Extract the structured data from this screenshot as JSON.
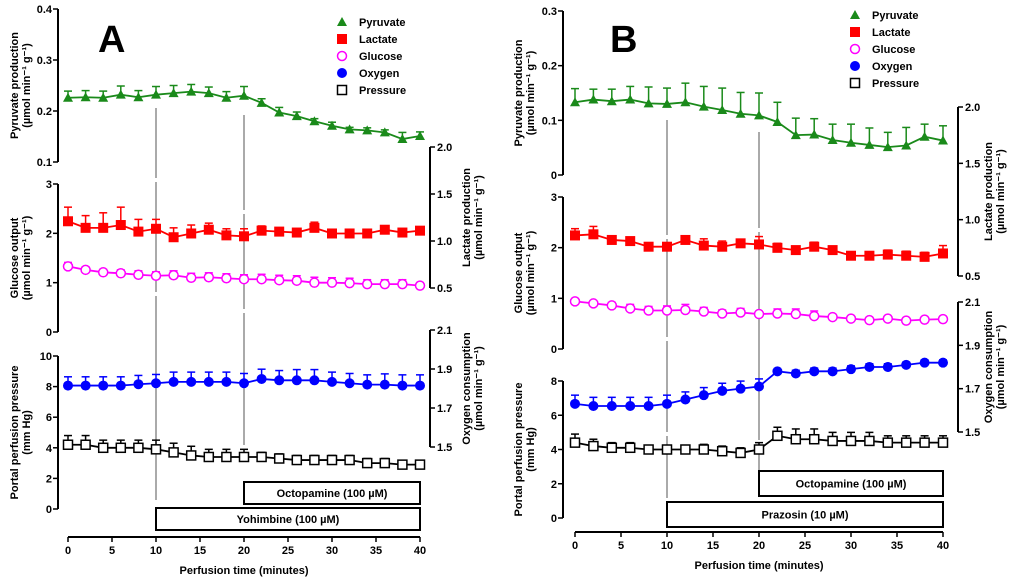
{
  "figure": {
    "legend": [
      {
        "name": "Pyruvate",
        "marker": "triangle",
        "color": "#1a8a1a"
      },
      {
        "name": "Lactate",
        "marker": "square-filled",
        "color": "#ff0000"
      },
      {
        "name": "Glucose",
        "marker": "circle-open",
        "color": "#ff00ff"
      },
      {
        "name": "Oxygen",
        "marker": "circle-filled",
        "color": "#0000ff"
      },
      {
        "name": "Pressure",
        "marker": "square-open",
        "color": "#000000"
      }
    ]
  },
  "chart_data": [
    {
      "panel": "A",
      "type": "line",
      "xlabel": "Perfusion time (minutes)",
      "xlim": [
        0,
        40
      ],
      "xticks": [
        0,
        5,
        10,
        15,
        20,
        25,
        30,
        35,
        40
      ],
      "x": [
        0,
        2,
        4,
        6,
        8,
        10,
        12,
        14,
        16,
        18,
        20,
        22,
        24,
        26,
        28,
        30,
        32,
        34,
        36,
        38,
        40
      ],
      "axes": {
        "pyruvate": {
          "label": "Pyruvate production",
          "unit": "(µmol min⁻¹ g⁻¹)",
          "ylim": [
            0.1,
            0.4
          ],
          "ticks": [
            "0.1",
            "0.2",
            "0.3",
            "0.4"
          ],
          "side": "left"
        },
        "glucose": {
          "label": "Glucose output",
          "unit": "(µmol min⁻¹ g⁻¹)",
          "ylim": [
            0,
            3
          ],
          "ticks": [
            "0",
            "1",
            "2",
            "3"
          ],
          "side": "left"
        },
        "lactate": {
          "label": "Lactate production",
          "unit": "(µmol min⁻¹ g⁻¹)",
          "ylim": [
            0.5,
            2.0
          ],
          "ticks": [
            "0.5",
            "1.0",
            "1.5",
            "2.0"
          ],
          "side": "right"
        },
        "pressure": {
          "label": "Portal perfusion pressure",
          "unit": "(mm Hg)",
          "ylim": [
            0,
            10
          ],
          "ticks": [
            "0",
            "2",
            "4",
            "6",
            "8",
            "10"
          ],
          "side": "left"
        },
        "oxygen": {
          "label": "Oxygen consumption",
          "unit": "(µmol min⁻¹ g⁻¹)",
          "ylim": [
            1.5,
            2.1
          ],
          "ticks": [
            "1.5",
            "1.7",
            "1.9",
            "2.1"
          ],
          "side": "right"
        }
      },
      "series": [
        {
          "name": "Pyruvate",
          "axis": "pyruvate",
          "values": [
            0.226,
            0.227,
            0.226,
            0.232,
            0.227,
            0.232,
            0.235,
            0.238,
            0.235,
            0.226,
            0.23,
            0.216,
            0.197,
            0.19,
            0.18,
            0.171,
            0.164,
            0.162,
            0.158,
            0.145,
            0.151
          ],
          "err": [
            0.013,
            0.013,
            0.013,
            0.017,
            0.013,
            0.016,
            0.015,
            0.014,
            0.012,
            0.012,
            0.018,
            0.008,
            0.01,
            0.008,
            0.005,
            0.007,
            0.004,
            0.005,
            0.005,
            0.013,
            0.008
          ]
        },
        {
          "name": "Lactate",
          "axis": "lactate",
          "values": [
            1.21,
            1.14,
            1.14,
            1.17,
            1.1,
            1.13,
            1.04,
            1.08,
            1.12,
            1.06,
            1.05,
            1.11,
            1.1,
            1.09,
            1.14,
            1.08,
            1.08,
            1.08,
            1.12,
            1.09,
            1.11
          ],
          "err": [
            0.15,
            0.13,
            0.16,
            0.19,
            0.13,
            0.1,
            0.1,
            0.09,
            0.07,
            0.07,
            0.08,
            0.05,
            0.0,
            0.0,
            0.06,
            0.0,
            0.0,
            0.0,
            0.0,
            0.0,
            0.0
          ]
        },
        {
          "name": "Glucose",
          "axis": "glucose",
          "values": [
            1.33,
            1.26,
            1.21,
            1.19,
            1.16,
            1.14,
            1.15,
            1.1,
            1.11,
            1.09,
            1.07,
            1.07,
            1.05,
            1.04,
            1.0,
            1.0,
            0.99,
            0.97,
            0.97,
            0.97,
            0.94
          ],
          "err": [
            0.08,
            0.06,
            0.06,
            0.07,
            0.08,
            0.08,
            0.09,
            0.09,
            0.09,
            0.09,
            0.09,
            0.1,
            0.1,
            0.1,
            0.11,
            0.1,
            0.1,
            0.09,
            0.09,
            0.09,
            0.06
          ]
        },
        {
          "name": "Oxygen",
          "axis": "oxygen",
          "values": [
            1.815,
            1.815,
            1.815,
            1.815,
            1.822,
            1.827,
            1.834,
            1.834,
            1.834,
            1.834,
            1.827,
            1.849,
            1.842,
            1.842,
            1.842,
            1.834,
            1.827,
            1.82,
            1.82,
            1.815,
            1.815
          ],
          "err": [
            0.045,
            0.045,
            0.045,
            0.045,
            0.045,
            0.045,
            0.05,
            0.05,
            0.05,
            0.05,
            0.05,
            0.05,
            0.05,
            0.055,
            0.055,
            0.05,
            0.05,
            0.05,
            0.055,
            0.055,
            0.055
          ]
        },
        {
          "name": "Pressure",
          "axis": "pressure",
          "values": [
            4.2,
            4.2,
            4.0,
            4.0,
            4.0,
            3.9,
            3.7,
            3.5,
            3.4,
            3.4,
            3.4,
            3.4,
            3.3,
            3.2,
            3.2,
            3.2,
            3.2,
            3.0,
            3.0,
            2.9,
            2.9
          ],
          "err": [
            0.6,
            0.6,
            0.5,
            0.5,
            0.5,
            0.6,
            0.6,
            0.6,
            0.5,
            0.5,
            0.5,
            0.3,
            0.3,
            0.3,
            0.3,
            0.3,
            0.3,
            0.3,
            0.3,
            0.2,
            0.2
          ]
        }
      ],
      "treatments": [
        {
          "label": "Octopamine (100 µM)",
          "start": 20,
          "end": 40
        },
        {
          "label": "Yohimbine (100 µM)",
          "start": 10,
          "end": 40
        }
      ]
    },
    {
      "panel": "B",
      "type": "line",
      "xlabel": "Perfusion time (minutes)",
      "xlim": [
        0,
        40
      ],
      "xticks": [
        0,
        5,
        10,
        15,
        20,
        25,
        30,
        35,
        40
      ],
      "x": [
        0,
        2,
        4,
        6,
        8,
        10,
        12,
        14,
        16,
        18,
        20,
        22,
        24,
        26,
        28,
        30,
        32,
        34,
        36,
        38,
        40
      ],
      "axes": {
        "pyruvate": {
          "label": "Pyruvate production",
          "unit": "(µmol min⁻¹ g⁻¹)",
          "ylim": [
            0,
            0.3
          ],
          "ticks": [
            "0",
            "0.1",
            "0.2",
            "0.3"
          ],
          "side": "left"
        },
        "glucose": {
          "label": "Glucose output",
          "unit": "(µmol min⁻¹ g⁻¹)",
          "ylim": [
            0,
            3
          ],
          "ticks": [
            "0",
            "1",
            "2",
            "3"
          ],
          "side": "left"
        },
        "lactate": {
          "label": "Lactate production",
          "unit": "(µmol min⁻¹ g⁻¹)",
          "ylim": [
            0.5,
            2.0
          ],
          "ticks": [
            "0.5",
            "1.0",
            "1.5",
            "2.0"
          ],
          "side": "right"
        },
        "pressure": {
          "label": "Portal perfusion pressure",
          "unit": "(mm Hg)",
          "ylim": [
            0,
            8
          ],
          "ticks": [
            "0",
            "2",
            "4",
            "6",
            "8"
          ],
          "side": "left"
        },
        "oxygen": {
          "label": "Oxygen consumption",
          "unit": "(µmol min⁻¹ g⁻¹)",
          "ylim": [
            1.5,
            2.1
          ],
          "ticks": [
            "1.5",
            "1.7",
            "1.9",
            "2.1"
          ],
          "side": "right"
        }
      },
      "series": [
        {
          "name": "Pyruvate",
          "axis": "pyruvate",
          "values": [
            0.133,
            0.138,
            0.135,
            0.138,
            0.131,
            0.13,
            0.133,
            0.125,
            0.119,
            0.112,
            0.109,
            0.097,
            0.073,
            0.074,
            0.064,
            0.059,
            0.055,
            0.051,
            0.054,
            0.07,
            0.063
          ],
          "err": [
            0.025,
            0.019,
            0.022,
            0.024,
            0.03,
            0.029,
            0.035,
            0.037,
            0.04,
            0.039,
            0.041,
            0.036,
            0.031,
            0.029,
            0.029,
            0.034,
            0.031,
            0.027,
            0.033,
            0.023,
            0.027
          ]
        },
        {
          "name": "Lactate",
          "axis": "lactate",
          "values": [
            0.86,
            0.87,
            0.82,
            0.81,
            0.76,
            0.76,
            0.82,
            0.77,
            0.76,
            0.79,
            0.78,
            0.75,
            0.73,
            0.76,
            0.73,
            0.68,
            0.68,
            0.69,
            0.68,
            0.67,
            0.7
          ],
          "err": [
            0.06,
            0.07,
            0.03,
            0.0,
            0.0,
            0.0,
            0.0,
            0.06,
            0.05,
            0.03,
            0.07,
            0.04,
            0.0,
            0.04,
            0.03,
            0.03,
            0.03,
            0.04,
            0.04,
            0.04,
            0.07
          ]
        },
        {
          "name": "Glucose",
          "axis": "glucose",
          "values": [
            0.94,
            0.9,
            0.86,
            0.8,
            0.76,
            0.76,
            0.77,
            0.74,
            0.7,
            0.72,
            0.69,
            0.7,
            0.69,
            0.65,
            0.63,
            0.6,
            0.57,
            0.6,
            0.56,
            0.58,
            0.59
          ],
          "err": [
            0.0,
            0.05,
            0.06,
            0.08,
            0.08,
            0.09,
            0.11,
            0.08,
            0.07,
            0.08,
            0.0,
            0.09,
            0.1,
            0.1,
            0.0,
            0.0,
            0.0,
            0.0,
            0.0,
            0.0,
            0.05
          ]
        },
        {
          "name": "Oxygen",
          "axis": "oxygen",
          "values": [
            1.63,
            1.62,
            1.62,
            1.62,
            1.62,
            1.63,
            1.65,
            1.67,
            1.69,
            1.7,
            1.71,
            1.78,
            1.77,
            1.78,
            1.78,
            1.79,
            1.8,
            1.8,
            1.81,
            1.82,
            1.82
          ],
          "err": [
            0.04,
            0.04,
            0.04,
            0.04,
            0.04,
            0.04,
            0.035,
            0.035,
            0.035,
            0.035,
            0.035,
            0.0,
            0.015,
            0.015,
            0.015,
            0.015,
            0.015,
            0.015,
            0.012,
            0.012,
            0.012
          ]
        },
        {
          "name": "Pressure",
          "axis": "pressure",
          "values": [
            4.4,
            4.2,
            4.1,
            4.1,
            4.0,
            4.0,
            4.0,
            4.0,
            3.9,
            3.8,
            4.0,
            4.8,
            4.6,
            4.6,
            4.5,
            4.5,
            4.5,
            4.4,
            4.4,
            4.4,
            4.4
          ],
          "err": [
            0.5,
            0.4,
            0.3,
            0.3,
            0.0,
            0.0,
            0.0,
            0.3,
            0.3,
            0.3,
            0.4,
            0.5,
            0.6,
            0.6,
            0.5,
            0.5,
            0.5,
            0.4,
            0.4,
            0.4,
            0.4
          ]
        }
      ],
      "treatments": [
        {
          "label": "Octopamine (100 µM)",
          "start": 20,
          "end": 40
        },
        {
          "label": "Prazosin (10 µM)",
          "start": 10,
          "end": 40
        }
      ]
    }
  ]
}
